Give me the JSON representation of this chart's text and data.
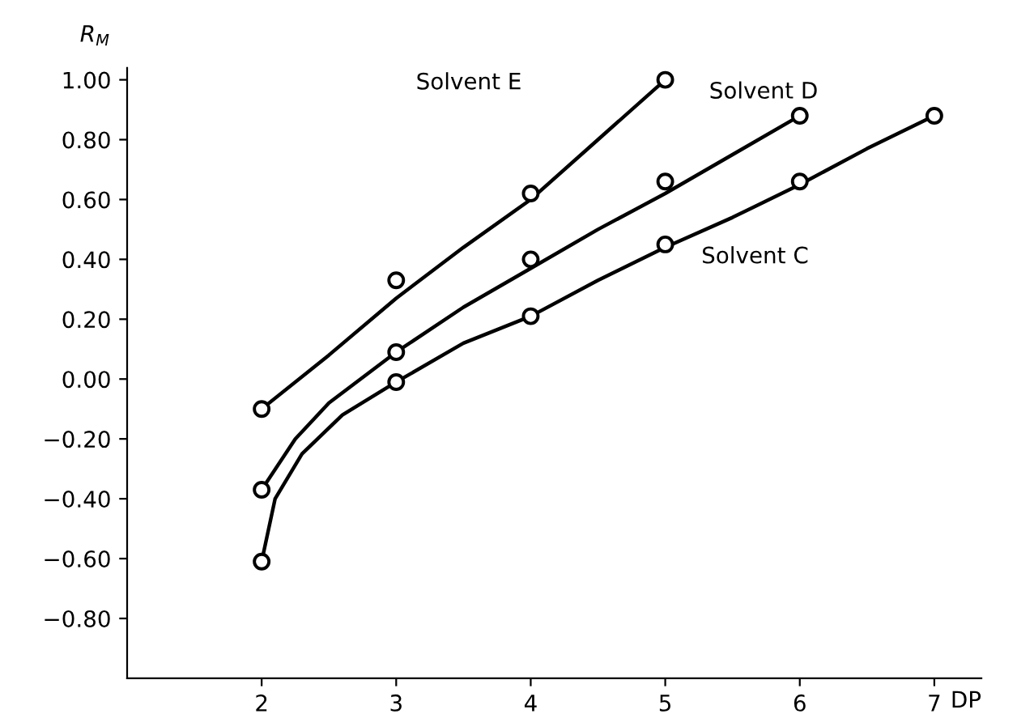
{
  "chart_data": {
    "type": "scatter",
    "ylabel": "R$_{M}$",
    "xlabel": "DP",
    "marker": "circle",
    "grid": false,
    "legend": false,
    "xlim": [
      1.0,
      7.35
    ],
    "ylim": [
      -1.0,
      1.04
    ],
    "xticks": [
      2,
      3,
      4,
      5,
      6,
      7
    ],
    "yticks": [
      {
        "value": 1.0,
        "label": "1.00"
      },
      {
        "value": 0.8,
        "label": "0.80"
      },
      {
        "value": 0.6,
        "label": "0.60"
      },
      {
        "value": 0.4,
        "label": "0.40"
      },
      {
        "value": 0.2,
        "label": "0.20"
      },
      {
        "value": 0.0,
        "label": "0.00"
      },
      {
        "value": -0.2,
        "label": "−0.20"
      },
      {
        "value": -0.4,
        "label": "−0.40"
      },
      {
        "value": -0.6,
        "label": "−0.60"
      },
      {
        "value": -0.8,
        "label": "−0.80"
      }
    ],
    "series": [
      {
        "color": "#000000",
        "x": [
          2,
          3,
          4,
          5
        ],
        "values": [
          -0.1,
          0.33,
          0.62,
          1.0
        ]
      },
      {
        "color": "#000000",
        "x": [
          2,
          3,
          4,
          5,
          6
        ],
        "values": [
          -0.37,
          0.09,
          0.4,
          0.66,
          0.88
        ]
      },
      {
        "color": "#000000",
        "x": [
          2,
          3,
          4,
          5,
          6,
          7
        ],
        "values": [
          -0.61,
          -0.01,
          0.21,
          0.45,
          0.66,
          0.88
        ]
      },
      {
        "type": "line",
        "color": "#000000",
        "marker": "none",
        "line_style": "solid",
        "x": [
          2,
          2.5,
          3,
          3.5,
          4,
          4.5,
          5
        ],
        "values": [
          -0.1,
          0.08,
          0.27,
          0.44,
          0.6,
          0.8,
          1.0
        ]
      },
      {
        "type": "line",
        "color": "#000000",
        "marker": "none",
        "line_style": "solid",
        "x": [
          2,
          2.25,
          2.5,
          3,
          3.5,
          4,
          4.5,
          5,
          5.5,
          6
        ],
        "values": [
          -0.37,
          -0.2,
          -0.08,
          0.09,
          0.24,
          0.37,
          0.5,
          0.62,
          0.75,
          0.88
        ]
      },
      {
        "type": "line",
        "color": "#000000",
        "marker": "none",
        "line_style": "solid",
        "x": [
          2,
          2.1,
          2.3,
          2.6,
          3,
          3.5,
          4,
          4.5,
          5,
          5.5,
          6,
          6.5,
          7
        ],
        "values": [
          -0.61,
          -0.4,
          -0.25,
          -0.12,
          -0.01,
          0.12,
          0.21,
          0.33,
          0.44,
          0.54,
          0.65,
          0.77,
          0.88
        ]
      }
    ],
    "annotations": [
      "Solvent E",
      "Solvent D",
      "Solvent C"
    ]
  }
}
